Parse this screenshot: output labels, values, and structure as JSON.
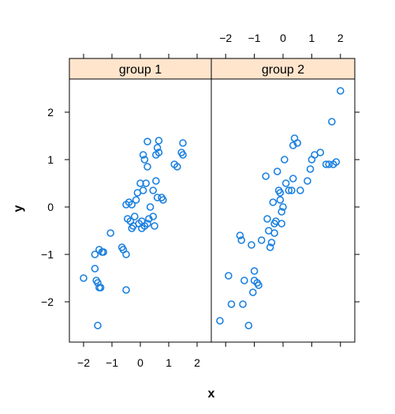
{
  "chart_data": {
    "type": "scatter",
    "layout": "lattice-1x2",
    "xlabel": "x",
    "ylabel": "y",
    "xlim": [
      -2.5,
      2.5
    ],
    "ylim": [
      -2.85,
      2.7
    ],
    "x_ticks": [
      "−2",
      "−1",
      "0",
      "1",
      "2"
    ],
    "x_tick_values": [
      -2,
      -1,
      0,
      1,
      2
    ],
    "y_ticks": [
      "−2",
      "−1",
      "0",
      "1",
      "2"
    ],
    "y_tick_values": [
      -2,
      -1,
      0,
      1,
      2
    ],
    "grid": false,
    "point_color": "#1a80e0",
    "strip_color": "#ffe5cc",
    "panels": [
      {
        "strip_label": "group 1",
        "x": [
          -2.0,
          -1.6,
          -1.55,
          -1.5,
          -1.45,
          -1.4,
          -1.35,
          -1.5,
          -1.6,
          -1.3,
          -1.45,
          -1.05,
          -0.65,
          -0.6,
          -0.5,
          -0.5,
          -0.45,
          -0.5,
          -0.4,
          -0.35,
          -0.3,
          -0.3,
          -0.25,
          -0.2,
          -0.15,
          -0.1,
          -0.05,
          0.0,
          0.05,
          0.05,
          0.1,
          0.15,
          0.15,
          0.2,
          0.25,
          0.25,
          0.3,
          0.35,
          0.45,
          0.45,
          0.5,
          0.55,
          0.55,
          0.6,
          0.6,
          0.65,
          0.75,
          0.8,
          1.2,
          1.3,
          1.45,
          1.5,
          1.5,
          0.65,
          0.1,
          0.25
        ],
        "y": [
          -1.5,
          -1.3,
          -1.55,
          -1.6,
          -1.7,
          -1.7,
          -0.95,
          -2.5,
          -1.0,
          -0.95,
          -0.9,
          -0.55,
          -0.85,
          -0.9,
          -1.0,
          -1.75,
          -0.25,
          0.05,
          0.1,
          -0.3,
          -0.45,
          0.05,
          -0.4,
          -0.2,
          0.15,
          0.3,
          -0.35,
          0.5,
          -0.3,
          -0.45,
          0.35,
          1.0,
          -0.4,
          0.5,
          0.85,
          -0.35,
          -0.25,
          0.0,
          0.35,
          -0.2,
          -0.4,
          1.1,
          0.55,
          0.2,
          1.25,
          1.4,
          0.2,
          0.15,
          0.9,
          0.85,
          1.15,
          1.1,
          1.35,
          1.15,
          1.1,
          1.38
        ]
      },
      {
        "strip_label": "group 2",
        "x": [
          -2.2,
          -1.9,
          -1.8,
          -1.5,
          -1.45,
          -1.4,
          -1.35,
          -1.2,
          -1.1,
          -1.05,
          -1.0,
          -1.0,
          -0.9,
          -0.85,
          -0.75,
          -0.6,
          -0.55,
          -0.5,
          -0.45,
          -0.4,
          -0.35,
          -0.3,
          -0.3,
          -0.25,
          -0.2,
          -0.15,
          -0.1,
          -0.1,
          -0.05,
          -0.05,
          0.0,
          0.05,
          0.1,
          0.2,
          0.3,
          0.35,
          0.35,
          0.4,
          0.5,
          0.6,
          0.85,
          0.95,
          1.0,
          1.1,
          1.3,
          1.5,
          1.6,
          1.7,
          1.75,
          1.85,
          2.0
        ],
        "y": [
          -2.4,
          -1.45,
          -2.05,
          -0.6,
          -0.7,
          -2.05,
          -1.55,
          -2.5,
          -0.8,
          -1.8,
          -1.35,
          -1.55,
          -1.6,
          -1.65,
          -0.7,
          0.65,
          -0.25,
          -0.5,
          -0.85,
          -0.75,
          0.1,
          -0.55,
          -0.35,
          -0.3,
          0.75,
          0.35,
          0.15,
          0.3,
          -0.1,
          -0.35,
          0.0,
          1.0,
          0.5,
          0.35,
          0.35,
          0.6,
          1.3,
          1.45,
          1.35,
          0.35,
          0.55,
          0.8,
          1.0,
          1.1,
          1.15,
          0.9,
          0.9,
          1.8,
          0.9,
          0.95,
          2.45
        ]
      }
    ]
  }
}
